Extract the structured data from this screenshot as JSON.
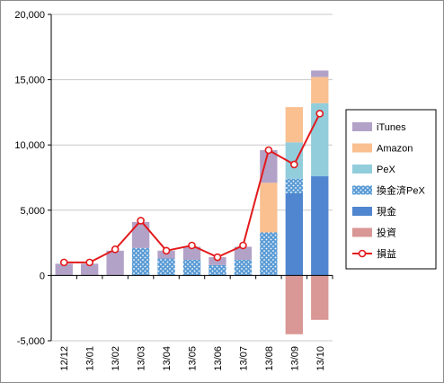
{
  "chart_data": {
    "type": "bar",
    "stacked": true,
    "categories": [
      "12/12",
      "13/01",
      "13/02",
      "13/03",
      "13/04",
      "13/05",
      "13/06",
      "13/07",
      "13/08",
      "13/09",
      "13/10"
    ],
    "ylim": [
      -5000,
      20000
    ],
    "yticks": [
      -5000,
      0,
      5000,
      10000,
      15000,
      20000
    ],
    "ytick_labels": [
      "-5,000",
      "0",
      "5,000",
      "10,000",
      "15,000",
      "20,000"
    ],
    "grid": "horizontal",
    "legend_position": "right",
    "series": [
      {
        "name": "損益",
        "kind": "line",
        "color": "#e31a1c",
        "values": [
          1000,
          1000,
          2000,
          4200,
          1900,
          2300,
          1400,
          2300,
          9600,
          8500,
          12400
        ]
      },
      {
        "name": "投資",
        "kind": "bar",
        "color": "#d99795",
        "values": [
          0,
          0,
          0,
          0,
          0,
          0,
          0,
          0,
          0,
          -4500,
          -3400
        ]
      },
      {
        "name": "現金",
        "kind": "bar",
        "color": "#4f86cf",
        "values": [
          0,
          0,
          0,
          0,
          0,
          0,
          0,
          0,
          0,
          6300,
          7600
        ]
      },
      {
        "name": "換金済PeX",
        "kind": "bar",
        "color": "#5a9bd5",
        "pattern": "dots",
        "values": [
          0,
          0,
          0,
          2100,
          1300,
          1200,
          800,
          1200,
          3300,
          1100,
          0
        ]
      },
      {
        "name": "PeX",
        "kind": "bar",
        "color": "#92cddc",
        "values": [
          0,
          0,
          0,
          0,
          0,
          0,
          0,
          0,
          0,
          2800,
          5600
        ]
      },
      {
        "name": "Amazon",
        "kind": "bar",
        "color": "#fac090",
        "values": [
          0,
          0,
          0,
          0,
          0,
          0,
          0,
          0,
          3800,
          2700,
          2000
        ]
      },
      {
        "name": "iTunes",
        "kind": "bar",
        "color": "#b3a2c7",
        "values": [
          900,
          900,
          1900,
          2000,
          600,
          1000,
          600,
          1000,
          2500,
          0,
          500
        ]
      }
    ],
    "legend_order": [
      "iTunes",
      "Amazon",
      "PeX",
      "換金済PeX",
      "現金",
      "投資",
      "損益"
    ]
  }
}
